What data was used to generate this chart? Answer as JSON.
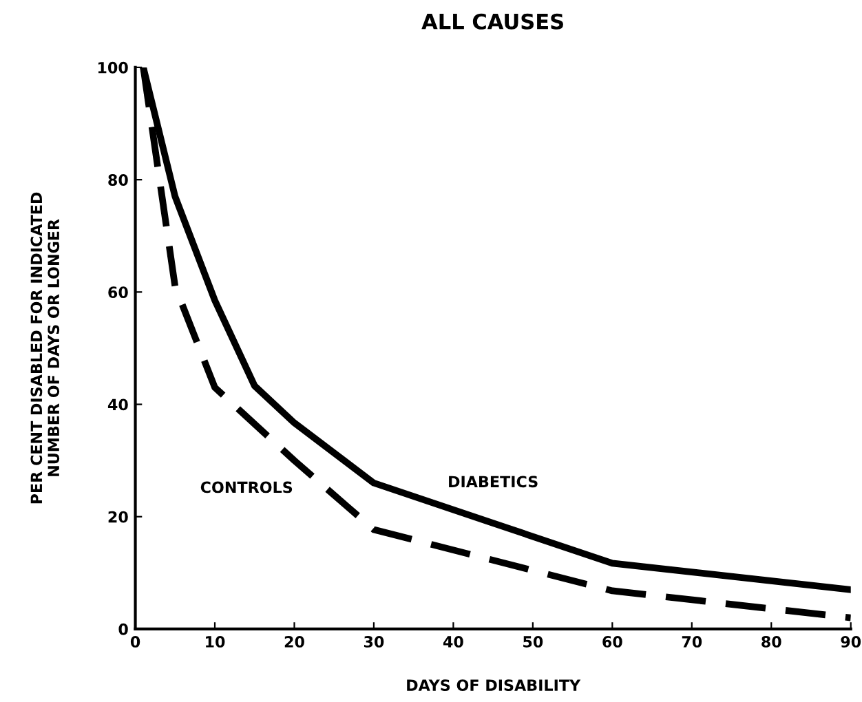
{
  "chart_data": {
    "type": "line",
    "title": "ALL CAUSES",
    "xlabel": "DAYS OF DISABILITY",
    "ylabel": "PER CENT DISABLED FOR INDICATED\nNUMBER OF DAYS OR LONGER",
    "xlim": [
      0,
      90
    ],
    "ylim": [
      0,
      100
    ],
    "xticks": [
      0,
      10,
      20,
      30,
      40,
      50,
      60,
      70,
      80,
      90
    ],
    "yticks": [
      0,
      20,
      40,
      60,
      80,
      100
    ],
    "grid": false,
    "legend": false,
    "marker": "none",
    "series": [
      {
        "name": "DIABETICS",
        "color": "#000000",
        "line_style": "solid",
        "x": [
          1,
          5,
          10,
          15,
          20,
          30,
          60,
          90
        ],
        "values": [
          100,
          77,
          58.5,
          43.3,
          36.7,
          26,
          11.7,
          7
        ]
      },
      {
        "name": "CONTROLS",
        "color": "#000000",
        "line_style": "dashed",
        "x": [
          1,
          5,
          10,
          20,
          30,
          60,
          90
        ],
        "values": [
          100,
          61,
          43,
          30,
          17.7,
          6.8,
          2
        ]
      }
    ]
  }
}
